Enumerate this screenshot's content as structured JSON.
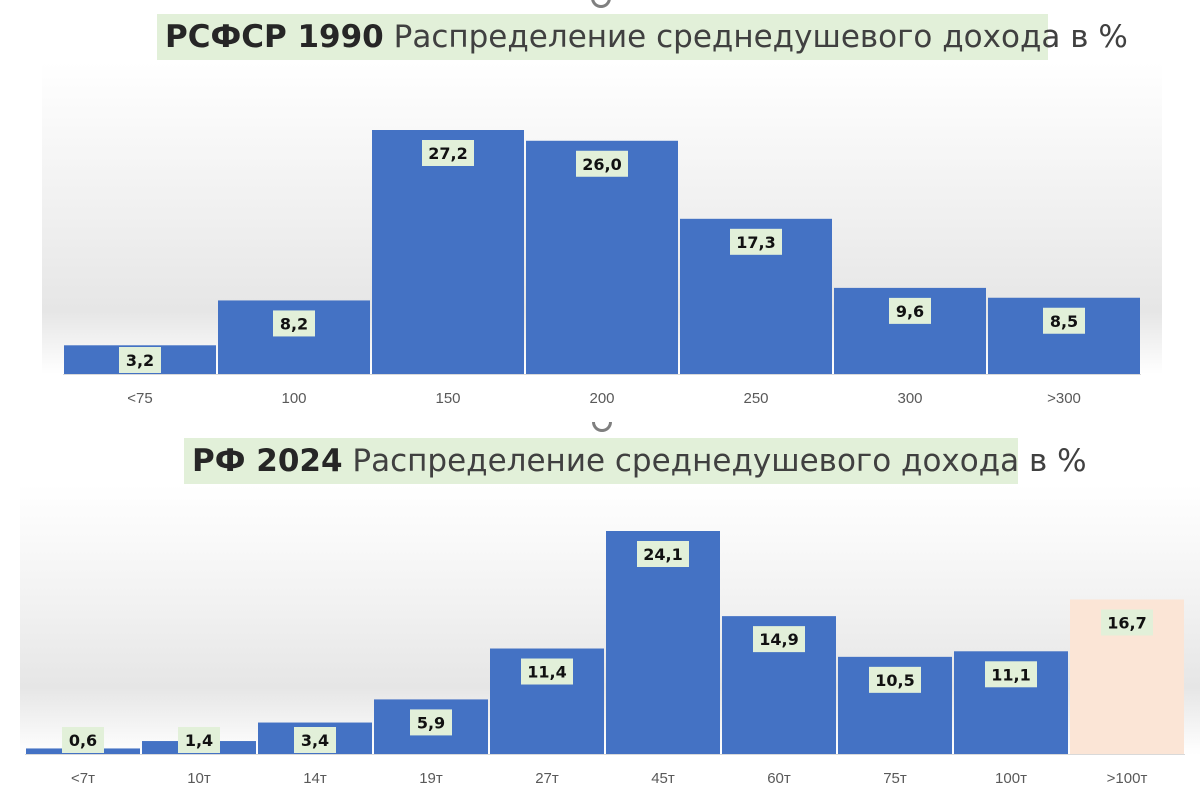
{
  "colors": {
    "bar": "#4472c4",
    "bar_highlight": "#fbe5d6",
    "label_bg": "#e2f0d9",
    "title_bg": "#e2f0d9"
  },
  "chart_data": [
    {
      "type": "bar",
      "title_bold": "РСФСР 1990",
      "title_rest": "Распределение среднедушевого дохода в %",
      "categories": [
        "<75",
        "100",
        "150",
        "200",
        "250",
        "300",
        ">300"
      ],
      "values": [
        3.2,
        8.2,
        27.2,
        26.0,
        17.3,
        9.6,
        8.5
      ],
      "labels": [
        "3,2",
        "8,2",
        "27,2",
        "26,0",
        "17,3",
        "9,6",
        "8,5"
      ],
      "ylim": [
        0,
        27.2
      ],
      "grid": false,
      "legend": "none"
    },
    {
      "type": "bar",
      "title_bold": "РФ 2024",
      "title_rest": "Распределение среднедушевого дохода в %",
      "categories": [
        "<7т",
        "10т",
        "14т",
        "19т",
        "27т",
        "45т",
        "60т",
        "75т",
        "100т",
        ">100т"
      ],
      "values": [
        0.6,
        1.4,
        3.4,
        5.9,
        11.4,
        24.1,
        14.9,
        10.5,
        11.1,
        16.7
      ],
      "labels": [
        "0,6",
        "1,4",
        "3,4",
        "5,9",
        "11,4",
        "24,1",
        "14,9",
        "10,5",
        "11,1",
        "16,7"
      ],
      "highlight_index": 9,
      "ylim": [
        0,
        24.1
      ],
      "grid": false,
      "legend": "none"
    }
  ]
}
